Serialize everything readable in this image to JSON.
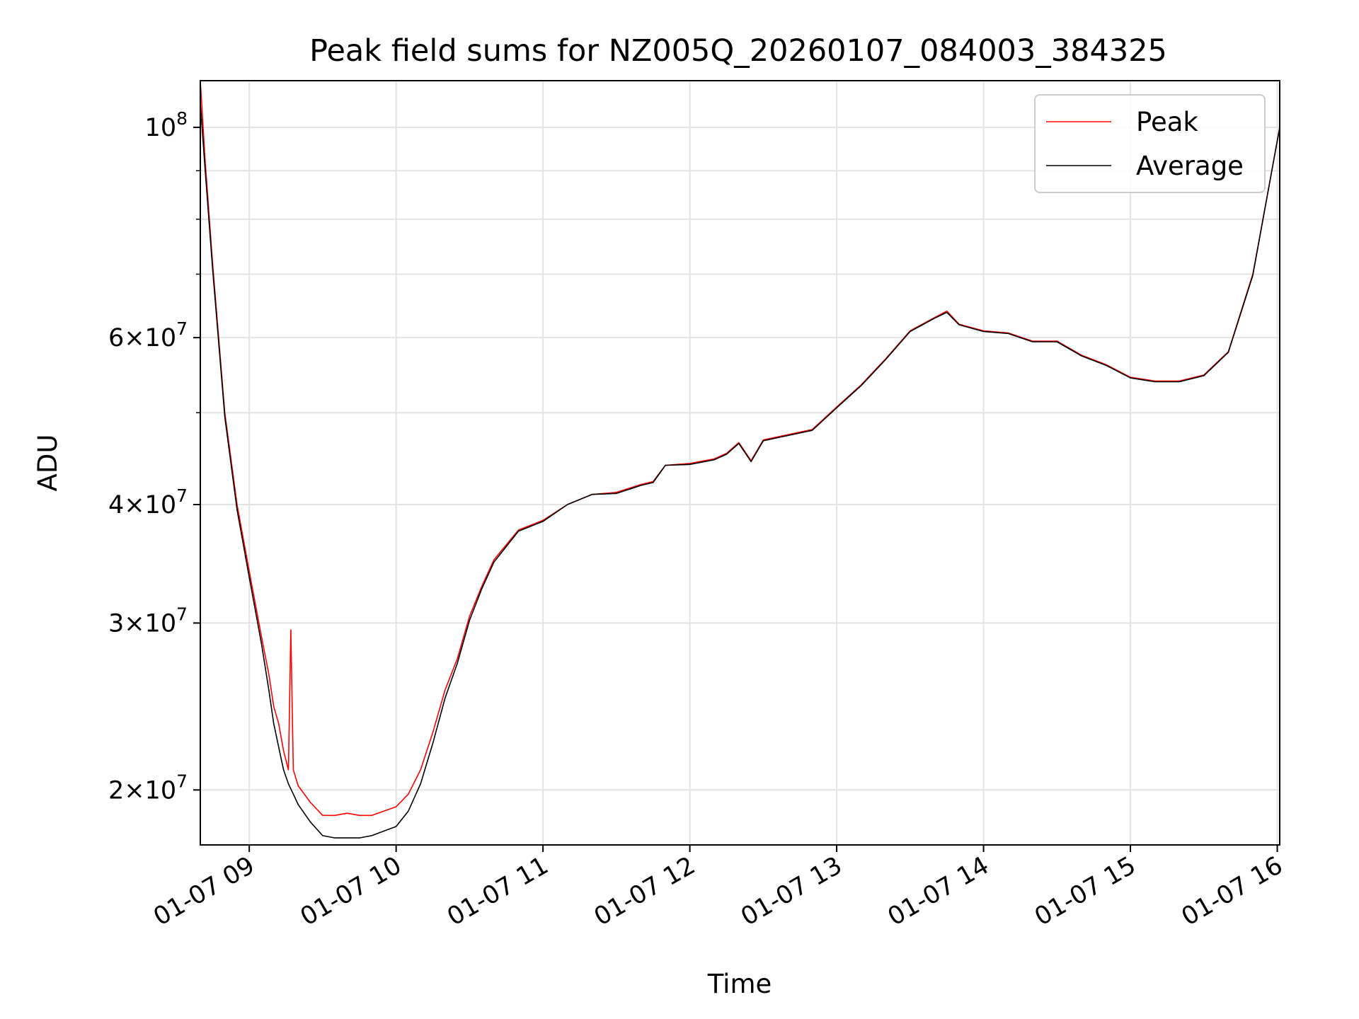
{
  "chart_data": {
    "type": "line",
    "title": "Peak field sums for NZ005Q_20260107_084003_384325",
    "xlabel": "Time",
    "ylabel": "ADU",
    "x_range": [
      "2026-01-07 08:40",
      "2026-01-07 16:01"
    ],
    "ylim": [
      17500000,
      112000000
    ],
    "y_scale": "log",
    "grid": true,
    "legend_position": "top-right",
    "x_ticks": [
      {
        "value": "2026-01-07 09:00",
        "label": "01-07 09"
      },
      {
        "value": "2026-01-07 10:00",
        "label": "01-07 10"
      },
      {
        "value": "2026-01-07 11:00",
        "label": "01-07 11"
      },
      {
        "value": "2026-01-07 12:00",
        "label": "01-07 12"
      },
      {
        "value": "2026-01-07 13:00",
        "label": "01-07 13"
      },
      {
        "value": "2026-01-07 14:00",
        "label": "01-07 14"
      },
      {
        "value": "2026-01-07 15:00",
        "label": "01-07 15"
      },
      {
        "value": "2026-01-07 16:00",
        "label": "01-07 16"
      }
    ],
    "y_major_ticks": [
      {
        "value": 20000000,
        "mantissa": "2",
        "base": "10",
        "exp": "7"
      },
      {
        "value": 30000000,
        "mantissa": "3",
        "base": "10",
        "exp": "7"
      },
      {
        "value": 40000000,
        "mantissa": "4",
        "base": "10",
        "exp": "7"
      },
      {
        "value": 60000000,
        "mantissa": "6",
        "base": "10",
        "exp": "7"
      },
      {
        "value": 100000000,
        "mantissa": "",
        "base": "10",
        "exp": "8"
      }
    ],
    "y_minor_ticks": [
      50000000,
      70000000,
      80000000,
      90000000
    ],
    "series": [
      {
        "name": "Peak",
        "color": "#ff0000",
        "points": [
          [
            "2026-01-07 08:40",
            112000000
          ],
          [
            "2026-01-07 08:42",
            92000000
          ],
          [
            "2026-01-07 08:45",
            72000000
          ],
          [
            "2026-01-07 08:50",
            50000000
          ],
          [
            "2026-01-07 08:55",
            40000000
          ],
          [
            "2026-01-07 09:00",
            34000000
          ],
          [
            "2026-01-07 09:05",
            29000000
          ],
          [
            "2026-01-07 09:08",
            26500000
          ],
          [
            "2026-01-07 09:10",
            24500000
          ],
          [
            "2026-01-07 09:12",
            23500000
          ],
          [
            "2026-01-07 09:14",
            22000000
          ],
          [
            "2026-01-07 09:16",
            21000000
          ],
          [
            "2026-01-07 09:17",
            29500000
          ],
          [
            "2026-01-07 09:18",
            21000000
          ],
          [
            "2026-01-07 09:20",
            20200000
          ],
          [
            "2026-01-07 09:25",
            19400000
          ],
          [
            "2026-01-07 09:30",
            18800000
          ],
          [
            "2026-01-07 09:35",
            18800000
          ],
          [
            "2026-01-07 09:40",
            18900000
          ],
          [
            "2026-01-07 09:45",
            18800000
          ],
          [
            "2026-01-07 09:50",
            18800000
          ],
          [
            "2026-01-07 09:55",
            19000000
          ],
          [
            "2026-01-07 10:00",
            19200000
          ],
          [
            "2026-01-07 10:05",
            19800000
          ],
          [
            "2026-01-07 10:10",
            21000000
          ],
          [
            "2026-01-07 10:15",
            23000000
          ],
          [
            "2026-01-07 10:20",
            25500000
          ],
          [
            "2026-01-07 10:25",
            27500000
          ],
          [
            "2026-01-07 10:30",
            30500000
          ],
          [
            "2026-01-07 10:35",
            32800000
          ],
          [
            "2026-01-07 10:40",
            35000000
          ],
          [
            "2026-01-07 10:50",
            37600000
          ],
          [
            "2026-01-07 11:00",
            38500000
          ],
          [
            "2026-01-07 11:10",
            40000000
          ],
          [
            "2026-01-07 11:20",
            41000000
          ],
          [
            "2026-01-07 11:30",
            41200000
          ],
          [
            "2026-01-07 11:40",
            42000000
          ],
          [
            "2026-01-07 11:45",
            42300000
          ],
          [
            "2026-01-07 11:50",
            44000000
          ],
          [
            "2026-01-07 12:00",
            44200000
          ],
          [
            "2026-01-07 12:10",
            44700000
          ],
          [
            "2026-01-07 12:15",
            45300000
          ],
          [
            "2026-01-07 12:20",
            46500000
          ],
          [
            "2026-01-07 12:25",
            44500000
          ],
          [
            "2026-01-07 12:30",
            46800000
          ],
          [
            "2026-01-07 12:40",
            47400000
          ],
          [
            "2026-01-07 12:50",
            48000000
          ],
          [
            "2026-01-07 13:00",
            50700000
          ],
          [
            "2026-01-07 13:10",
            53500000
          ],
          [
            "2026-01-07 13:20",
            57000000
          ],
          [
            "2026-01-07 13:30",
            61000000
          ],
          [
            "2026-01-07 13:40",
            63000000
          ],
          [
            "2026-01-07 13:45",
            64000000
          ],
          [
            "2026-01-07 13:50",
            62000000
          ],
          [
            "2026-01-07 14:00",
            61000000
          ],
          [
            "2026-01-07 14:10",
            60700000
          ],
          [
            "2026-01-07 14:20",
            59500000
          ],
          [
            "2026-01-07 14:30",
            59500000
          ],
          [
            "2026-01-07 14:40",
            57500000
          ],
          [
            "2026-01-07 14:50",
            56200000
          ],
          [
            "2026-01-07 15:00",
            54500000
          ],
          [
            "2026-01-07 15:10",
            54000000
          ],
          [
            "2026-01-07 15:20",
            54000000
          ],
          [
            "2026-01-07 15:30",
            54800000
          ],
          [
            "2026-01-07 15:40",
            58000000
          ],
          [
            "2026-01-07 15:50",
            70000000
          ],
          [
            "2026-01-07 16:01",
            100000000
          ]
        ]
      },
      {
        "name": "Average",
        "color": "#000000",
        "points": [
          [
            "2026-01-07 08:40",
            106000000
          ],
          [
            "2026-01-07 08:42",
            90000000
          ],
          [
            "2026-01-07 08:45",
            71000000
          ],
          [
            "2026-01-07 08:50",
            49500000
          ],
          [
            "2026-01-07 08:55",
            39500000
          ],
          [
            "2026-01-07 09:00",
            33500000
          ],
          [
            "2026-01-07 09:05",
            28500000
          ],
          [
            "2026-01-07 09:08",
            25500000
          ],
          [
            "2026-01-07 09:10",
            23500000
          ],
          [
            "2026-01-07 09:12",
            22200000
          ],
          [
            "2026-01-07 09:14",
            21000000
          ],
          [
            "2026-01-07 09:16",
            20300000
          ],
          [
            "2026-01-07 09:18",
            19800000
          ],
          [
            "2026-01-07 09:20",
            19300000
          ],
          [
            "2026-01-07 09:25",
            18500000
          ],
          [
            "2026-01-07 09:30",
            17900000
          ],
          [
            "2026-01-07 09:35",
            17800000
          ],
          [
            "2026-01-07 09:40",
            17800000
          ],
          [
            "2026-01-07 09:45",
            17800000
          ],
          [
            "2026-01-07 09:50",
            17900000
          ],
          [
            "2026-01-07 09:55",
            18100000
          ],
          [
            "2026-01-07 10:00",
            18300000
          ],
          [
            "2026-01-07 10:05",
            19000000
          ],
          [
            "2026-01-07 10:10",
            20300000
          ],
          [
            "2026-01-07 10:15",
            22400000
          ],
          [
            "2026-01-07 10:20",
            25000000
          ],
          [
            "2026-01-07 10:25",
            27200000
          ],
          [
            "2026-01-07 10:30",
            30200000
          ],
          [
            "2026-01-07 10:35",
            32600000
          ],
          [
            "2026-01-07 10:40",
            34800000
          ],
          [
            "2026-01-07 10:50",
            37500000
          ],
          [
            "2026-01-07 11:00",
            38400000
          ],
          [
            "2026-01-07 11:10",
            40000000
          ],
          [
            "2026-01-07 11:20",
            41000000
          ],
          [
            "2026-01-07 11:30",
            41100000
          ],
          [
            "2026-01-07 11:40",
            41900000
          ],
          [
            "2026-01-07 11:45",
            42200000
          ],
          [
            "2026-01-07 11:50",
            44000000
          ],
          [
            "2026-01-07 12:00",
            44100000
          ],
          [
            "2026-01-07 12:10",
            44600000
          ],
          [
            "2026-01-07 12:15",
            45200000
          ],
          [
            "2026-01-07 12:20",
            46400000
          ],
          [
            "2026-01-07 12:25",
            44400000
          ],
          [
            "2026-01-07 12:30",
            46700000
          ],
          [
            "2026-01-07 12:40",
            47300000
          ],
          [
            "2026-01-07 12:50",
            47900000
          ],
          [
            "2026-01-07 13:00",
            50600000
          ],
          [
            "2026-01-07 13:10",
            53400000
          ],
          [
            "2026-01-07 13:20",
            56900000
          ],
          [
            "2026-01-07 13:30",
            60900000
          ],
          [
            "2026-01-07 13:40",
            62900000
          ],
          [
            "2026-01-07 13:45",
            63800000
          ],
          [
            "2026-01-07 13:50",
            61900000
          ],
          [
            "2026-01-07 14:00",
            60900000
          ],
          [
            "2026-01-07 14:10",
            60600000
          ],
          [
            "2026-01-07 14:20",
            59400000
          ],
          [
            "2026-01-07 14:30",
            59400000
          ],
          [
            "2026-01-07 14:40",
            57400000
          ],
          [
            "2026-01-07 14:50",
            56100000
          ],
          [
            "2026-01-07 15:00",
            54400000
          ],
          [
            "2026-01-07 15:10",
            53900000
          ],
          [
            "2026-01-07 15:20",
            53900000
          ],
          [
            "2026-01-07 15:30",
            54700000
          ],
          [
            "2026-01-07 15:40",
            57900000
          ],
          [
            "2026-01-07 15:50",
            69800000
          ],
          [
            "2026-01-07 16:01",
            100000000
          ]
        ]
      }
    ]
  }
}
